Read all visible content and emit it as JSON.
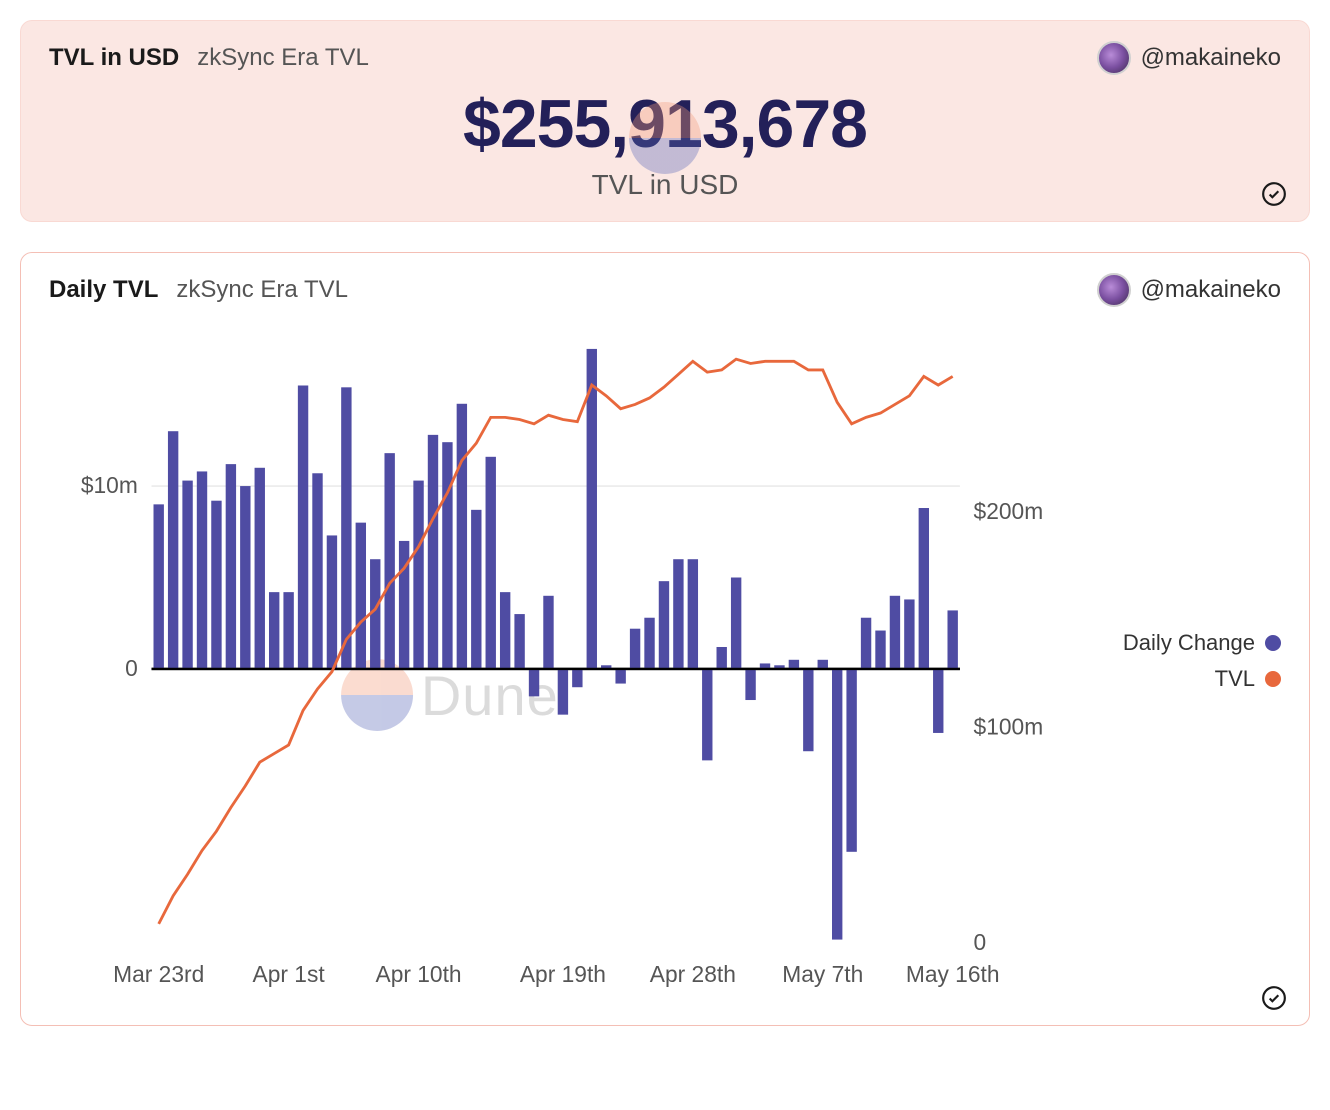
{
  "card1": {
    "title": "TVL in USD",
    "subtitle": "zkSync Era TVL",
    "author": "@makaineko",
    "value": "$255,913,678",
    "value_label": "TVL in USD",
    "bg_color": "#fbe7e3",
    "value_color": "#232059",
    "value_fontsize": 68
  },
  "card2": {
    "title": "Daily TVL",
    "subtitle": "zkSync Era TVL",
    "author": "@makaineko",
    "watermark": "Dune",
    "legend": [
      {
        "label": "Daily Change",
        "color": "#4f4ca3"
      },
      {
        "label": "TVL",
        "color": "#e8683c"
      }
    ],
    "chart": {
      "type": "bar+line",
      "background_color": "#ffffff",
      "grid_color": "#e2e2e2",
      "zero_line_color": "#000000",
      "bar_color": "#4f4ca3",
      "line_color": "#e8683c",
      "line_width": 2.5,
      "bar_width_ratio": 0.72,
      "left_axis": {
        "label_prefix": "$",
        "ticks": [
          0,
          10
        ],
        "tick_labels": [
          "0",
          "$10m"
        ],
        "min": -15,
        "max": 18,
        "unit": "m"
      },
      "right_axis": {
        "ticks": [
          0,
          100,
          200
        ],
        "tick_labels": [
          "0",
          "$100m",
          "$200m"
        ],
        "min": 0,
        "max": 280,
        "unit": "m"
      },
      "x_ticks": [
        "Mar 23rd",
        "Apr 1st",
        "Apr 10th",
        "Apr 19th",
        "Apr 28th",
        "May 7th",
        "May 16th"
      ],
      "daily_change": [
        9,
        13,
        10.3,
        10.8,
        9.2,
        11.2,
        10,
        11,
        4.2,
        4.2,
        15.5,
        10.7,
        7.3,
        15.4,
        8,
        6,
        11.8,
        7,
        10.3,
        12.8,
        12.4,
        14.5,
        8.7,
        11.6,
        4.2,
        3,
        -1.5,
        4,
        -2.5,
        -1,
        17.5,
        0.2,
        -0.8,
        2.2,
        2.8,
        4.8,
        6,
        6,
        -5,
        1.2,
        5,
        -1.7,
        0.3,
        0.2,
        0.5,
        -4.5,
        0.5,
        -14.8,
        -10,
        2.8,
        2.1,
        4,
        3.8,
        8.8,
        -3.5,
        3.2
      ],
      "tvl": [
        9,
        22,
        32,
        43,
        52,
        63,
        73,
        84,
        88,
        92,
        108,
        118,
        126,
        141,
        149,
        155,
        167,
        174,
        184,
        197,
        209,
        224,
        232,
        244,
        244,
        243,
        241,
        245,
        243,
        242,
        259,
        254,
        248,
        250,
        253,
        258,
        264,
        270,
        265,
        266,
        271,
        269,
        270,
        270,
        270,
        266,
        266,
        251,
        241,
        244,
        246,
        250,
        254,
        263,
        259,
        263
      ]
    }
  }
}
